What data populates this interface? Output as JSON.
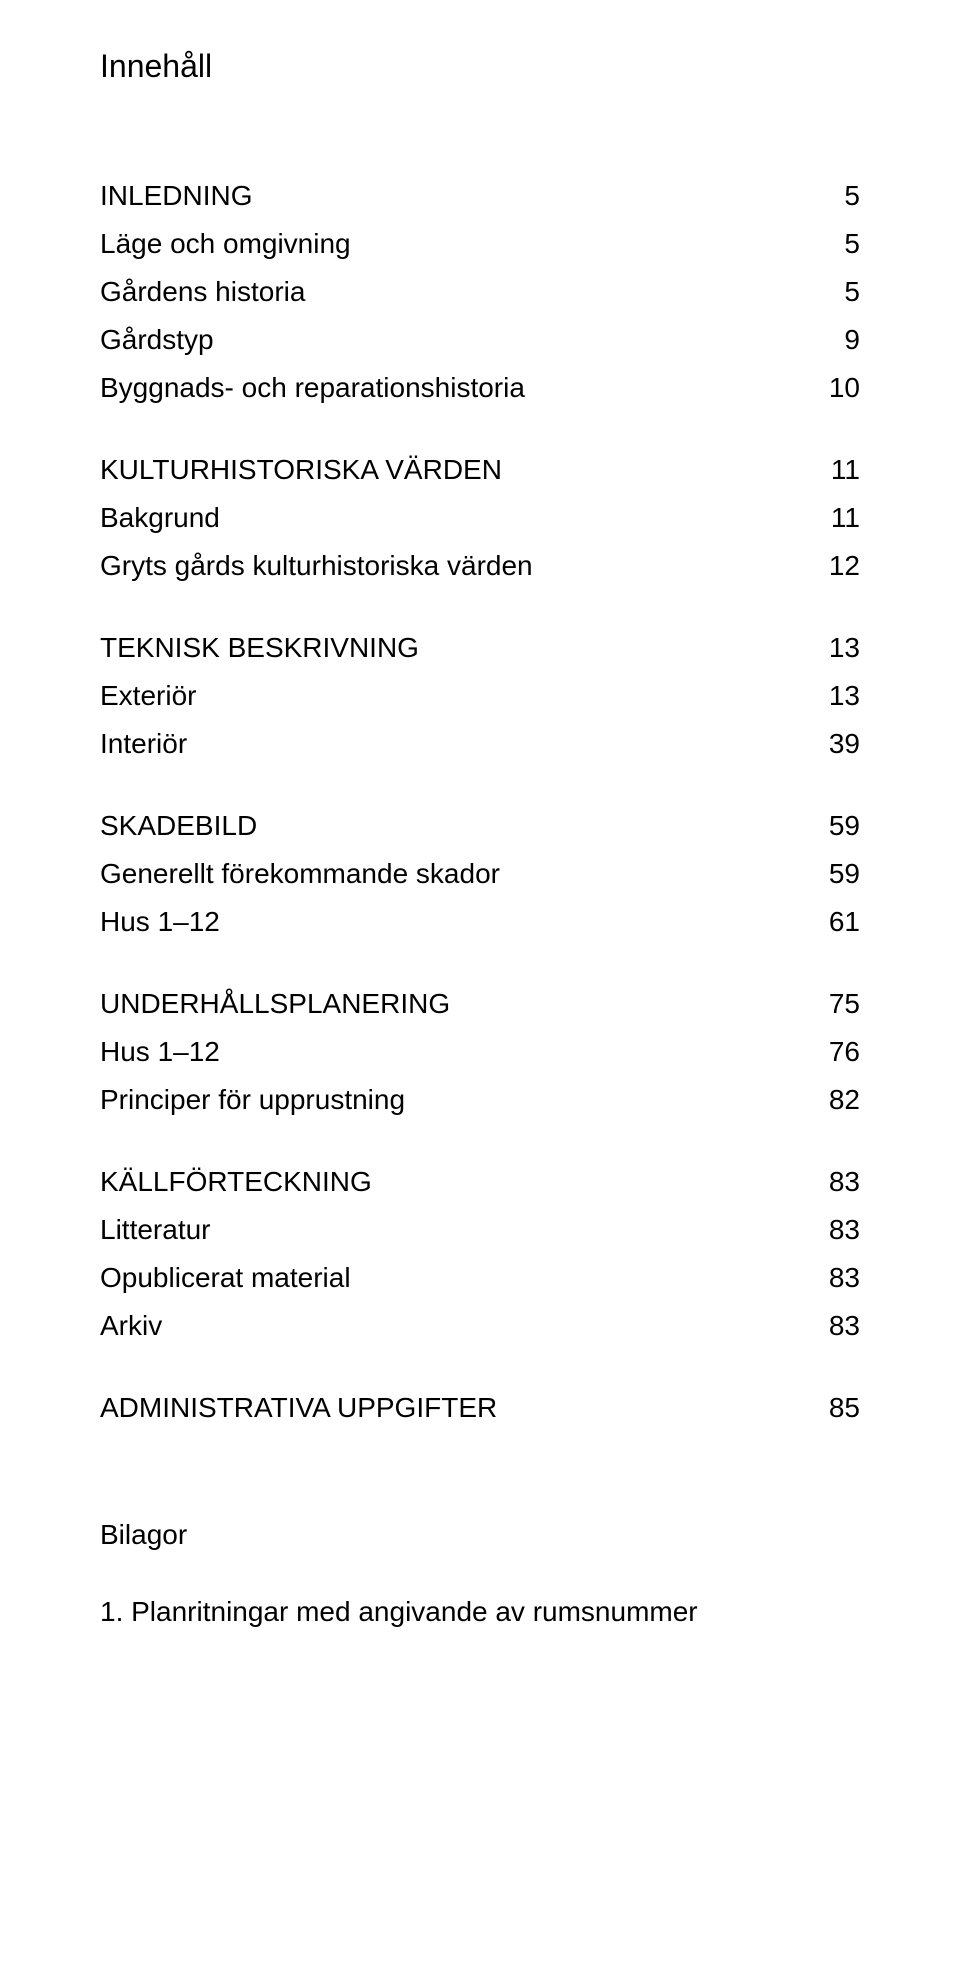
{
  "title": "Innehåll",
  "sections": [
    {
      "items": [
        {
          "label": "INLEDNING",
          "page": "5"
        },
        {
          "label": "Läge och omgivning",
          "page": "5"
        },
        {
          "label": "Gårdens historia",
          "page": "5"
        },
        {
          "label": "Gårdstyp",
          "page": "9"
        },
        {
          "label": "Byggnads- och reparationshistoria",
          "page": "10"
        }
      ]
    },
    {
      "items": [
        {
          "label": "KULTURHISTORISKA VÄRDEN",
          "page": "11"
        },
        {
          "label": "Bakgrund",
          "page": "11"
        },
        {
          "label": "Gryts gårds kulturhistoriska värden",
          "page": "12"
        }
      ]
    },
    {
      "items": [
        {
          "label": "TEKNISK BESKRIVNING",
          "page": "13"
        },
        {
          "label": "Exteriör",
          "page": "13"
        },
        {
          "label": "Interiör",
          "page": "39"
        }
      ]
    },
    {
      "items": [
        {
          "label": "SKADEBILD",
          "page": "59"
        },
        {
          "label": "Generellt förekommande skador",
          "page": "59"
        },
        {
          "label": "Hus 1–12",
          "page": "61"
        }
      ]
    },
    {
      "items": [
        {
          "label": "UNDERHÅLLSPLANERING",
          "page": "75"
        },
        {
          "label": "Hus 1–12",
          "page": "76"
        },
        {
          "label": "Principer för upprustning",
          "page": "82"
        }
      ]
    },
    {
      "items": [
        {
          "label": "KÄLLFÖRTECKNING",
          "page": "83"
        },
        {
          "label": "Litteratur",
          "page": "83"
        },
        {
          "label": "Opublicerat material",
          "page": "83"
        },
        {
          "label": "Arkiv",
          "page": "83"
        }
      ]
    },
    {
      "items": [
        {
          "label": "ADMINISTRATIVA UPPGIFTER",
          "page": "85"
        }
      ]
    }
  ],
  "appendix": {
    "heading": "Bilagor",
    "items": [
      "1. Planritningar med angivande av rumsnummer"
    ]
  },
  "typography": {
    "title_fontsize": 32,
    "row_fontsize": 28,
    "font_family": "Arial",
    "text_color": "#000000",
    "background_color": "#ffffff"
  }
}
